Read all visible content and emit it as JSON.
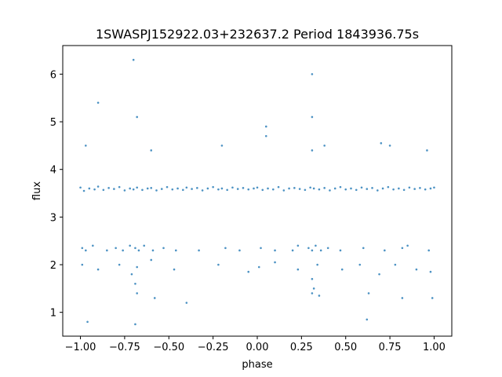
{
  "chart_data": {
    "type": "scatter",
    "title": "1SWASPJ152922.03+232637.2 Period 1843936.75s",
    "xlabel": "phase",
    "ylabel": "flux",
    "xlim": [
      -1.1,
      1.1
    ],
    "ylim": [
      0.5,
      6.6
    ],
    "grid": false,
    "legend": "none",
    "marker_color": "#1f77b4",
    "x_ticks": [
      {
        "value": -1.0,
        "label": "−1.00"
      },
      {
        "value": -0.75,
        "label": "−0.75"
      },
      {
        "value": -0.5,
        "label": "−0.50"
      },
      {
        "value": -0.25,
        "label": "−0.25"
      },
      {
        "value": 0.0,
        "label": "0.00"
      },
      {
        "value": 0.25,
        "label": "0.25"
      },
      {
        "value": 0.5,
        "label": "0.50"
      },
      {
        "value": 0.75,
        "label": "0.75"
      },
      {
        "value": 1.0,
        "label": "1.00"
      }
    ],
    "y_ticks": [
      {
        "value": 1,
        "label": "1"
      },
      {
        "value": 2,
        "label": "2"
      },
      {
        "value": 3,
        "label": "3"
      },
      {
        "value": 4,
        "label": "4"
      },
      {
        "value": 5,
        "label": "5"
      },
      {
        "value": 6,
        "label": "6"
      }
    ],
    "series": [
      {
        "x": [
          -1.0,
          -0.98,
          -0.95,
          -0.92,
          -0.9,
          -0.87,
          -0.84,
          -0.81,
          -0.78,
          -0.75,
          -0.72,
          -0.7,
          -0.68,
          -0.65,
          -0.62,
          -0.6,
          -0.57,
          -0.54,
          -0.51,
          -0.48,
          -0.45,
          -0.42,
          -0.4,
          -0.37,
          -0.34,
          -0.31,
          -0.28,
          -0.25,
          -0.22,
          -0.2,
          -0.17,
          -0.14,
          -0.11,
          -0.08,
          -0.05,
          -0.02,
          0.0,
          0.03,
          0.06,
          0.09,
          0.12,
          0.15,
          0.18,
          0.21,
          0.24,
          0.27,
          0.3,
          0.32,
          0.35,
          0.38,
          0.41,
          0.44,
          0.47,
          0.5,
          0.53,
          0.56,
          0.59,
          0.62,
          0.65,
          0.68,
          0.71,
          0.74,
          0.77,
          0.8,
          0.83,
          0.86,
          0.89,
          0.92,
          0.95,
          0.98,
          1.0,
          -0.99,
          -0.97,
          -0.93,
          -0.85,
          -0.8,
          -0.76,
          -0.72,
          -0.69,
          -0.67,
          -0.64,
          -0.59,
          -0.53,
          -0.46,
          -0.33,
          -0.18,
          -0.1,
          0.02,
          0.1,
          0.2,
          0.23,
          0.29,
          0.31,
          0.33,
          0.36,
          0.4,
          0.47,
          0.6,
          0.72,
          0.82,
          0.85,
          0.97,
          -0.99,
          -0.9,
          -0.78,
          -0.71,
          -0.69,
          -0.68,
          -0.6,
          -0.47,
          -0.22,
          -0.05,
          0.01,
          0.1,
          0.23,
          0.31,
          0.32,
          0.34,
          0.48,
          0.58,
          0.69,
          0.78,
          0.9,
          0.98,
          -0.97,
          -0.68,
          -0.6,
          -0.2,
          0.05,
          0.31,
          0.38,
          0.7,
          0.96,
          -0.68,
          -0.58,
          0.31,
          0.35,
          0.63,
          0.82,
          -0.96,
          -0.69,
          -0.4,
          0.05,
          0.31,
          0.62,
          0.99,
          -0.7,
          0.31,
          -0.9,
          0.75
        ],
        "y": [
          3.62,
          3.55,
          3.6,
          3.58,
          3.64,
          3.57,
          3.61,
          3.59,
          3.63,
          3.56,
          3.6,
          3.58,
          3.62,
          3.57,
          3.6,
          3.61,
          3.56,
          3.59,
          3.63,
          3.58,
          3.6,
          3.57,
          3.62,
          3.59,
          3.61,
          3.56,
          3.6,
          3.63,
          3.58,
          3.6,
          3.57,
          3.62,
          3.59,
          3.61,
          3.58,
          3.6,
          3.62,
          3.57,
          3.6,
          3.58,
          3.63,
          3.56,
          3.6,
          3.61,
          3.59,
          3.57,
          3.62,
          3.6,
          3.58,
          3.61,
          3.56,
          3.6,
          3.63,
          3.58,
          3.6,
          3.57,
          3.62,
          3.59,
          3.61,
          3.56,
          3.6,
          3.63,
          3.58,
          3.6,
          3.57,
          3.62,
          3.59,
          3.61,
          3.58,
          3.6,
          3.62,
          2.35,
          2.3,
          2.4,
          2.3,
          2.35,
          2.3,
          2.4,
          2.35,
          2.3,
          2.4,
          2.3,
          2.35,
          2.3,
          2.3,
          2.35,
          2.3,
          2.35,
          2.3,
          2.3,
          2.4,
          2.35,
          2.3,
          2.4,
          2.3,
          2.35,
          2.3,
          2.35,
          2.3,
          2.35,
          2.4,
          2.3,
          2.0,
          1.9,
          2.0,
          1.8,
          1.6,
          1.95,
          2.1,
          1.9,
          2.0,
          1.85,
          1.95,
          2.05,
          1.9,
          1.7,
          1.5,
          2.0,
          1.9,
          2.0,
          1.8,
          2.0,
          1.9,
          1.85,
          4.5,
          5.1,
          4.4,
          4.5,
          4.7,
          4.4,
          4.5,
          4.55,
          4.4,
          1.4,
          1.3,
          1.4,
          1.35,
          1.4,
          1.3,
          0.8,
          0.75,
          1.2,
          4.9,
          5.1,
          0.85,
          1.3,
          6.3,
          6.0,
          5.4,
          4.5
        ]
      }
    ]
  }
}
